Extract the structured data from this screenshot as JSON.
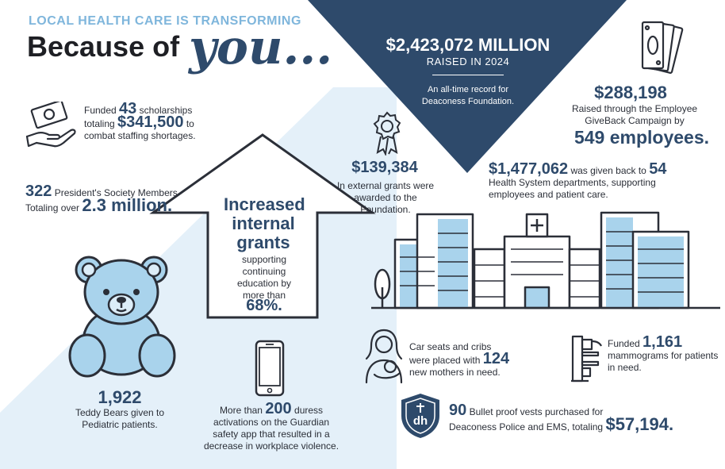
{
  "header": {
    "kicker": "LOCAL HEALTH CARE IS TRANSFORMING",
    "title_prefix": "Because of",
    "title_script": "you..."
  },
  "banner": {
    "amount": "$2,423,072 MILLION",
    "raised_in": "RAISED IN 2024",
    "note": "An all-time record for Deaconess Foundation."
  },
  "scholarships": {
    "pre": "Funded",
    "count": "43",
    "mid": "scholarships",
    "totaling": "totaling",
    "amount": "$341,500",
    "to": "to",
    "tail": "combat staffing shortages."
  },
  "presidents": {
    "count": "322",
    "label": "President's Society Members",
    "pre": "Totaling over",
    "amount": "2.3 million."
  },
  "grants": {
    "title": "Increased internal grants",
    "body": "supporting continuing education by more than",
    "percent": "68%."
  },
  "external": {
    "amount": "$139,384",
    "body": "In external grants were awarded to the Foundation."
  },
  "giveback": {
    "amount": "$288,198",
    "body": "Raised through the Employee GiveBack Campaign by",
    "employees": "549 employees."
  },
  "departments": {
    "amount": "$1,477,062",
    "mid": "was given back to",
    "count": "54",
    "body": "Health System departments, supporting employees and patient care."
  },
  "teddy": {
    "count": "1,922",
    "body": "Teddy Bears given to Pediatric patients."
  },
  "guardian": {
    "pre": "More than",
    "count": "200",
    "post": "duress",
    "body": "activations on the Guardian safety app that resulted in a decrease in workplace violence."
  },
  "carseats": {
    "line1": "Car seats and cribs",
    "line2": "were placed with",
    "count": "124",
    "line3": "new mothers in need."
  },
  "mammograms": {
    "pre": "Funded",
    "count": "1,161",
    "body": "mammograms for patients in need."
  },
  "vests": {
    "count": "90",
    "line1": "Bullet proof vests purchased for",
    "line2": "Deaconess Police and EMS, totaling",
    "amount": "$57,194."
  },
  "logo": {
    "text": "dh"
  },
  "colors": {
    "navy": "#2e4a6b",
    "light_blue": "#a9d3ec",
    "pale_blue": "#dcedf8",
    "kicker_blue": "#7fb6dc"
  },
  "icons": [
    "hand-money-icon",
    "award-ribbon-icon",
    "cash-stack-icon",
    "hospital-buildings-icon",
    "teddy-bear-icon",
    "smartphone-icon",
    "mother-baby-icon",
    "mammogram-machine-icon",
    "shield-logo-icon"
  ]
}
